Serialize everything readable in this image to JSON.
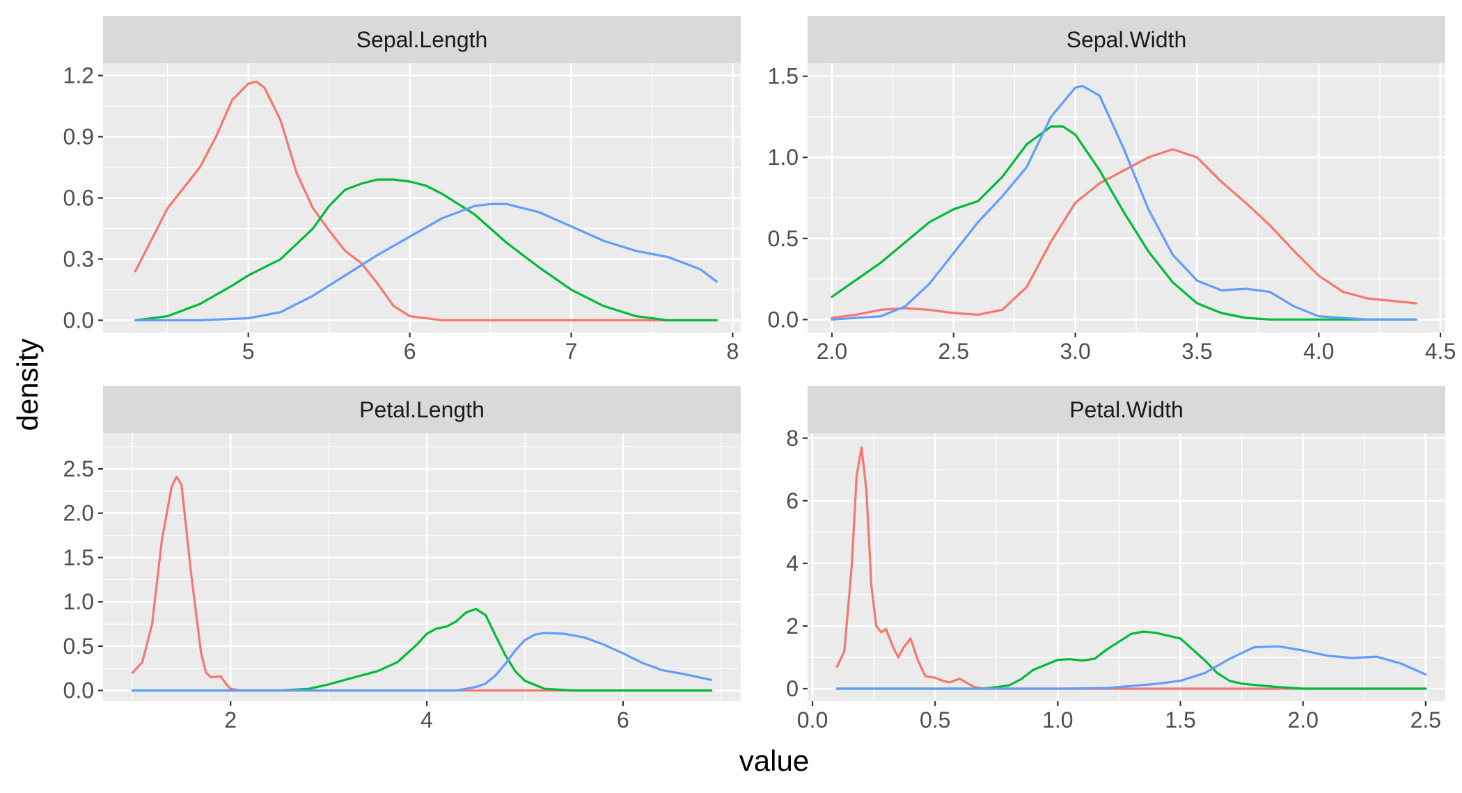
{
  "chart_data": {
    "type": "line",
    "subtype": "facet-density",
    "xlabel": "value",
    "ylabel": "density",
    "colors": {
      "series_1": "#F8766D",
      "series_2": "#00BA38",
      "series_3": "#619CFF",
      "panel_background": "#EBEBEB",
      "strip_background": "#D9D9D9",
      "grid": "#FFFFFF"
    },
    "grid": true,
    "panels": [
      {
        "title": "Sepal.Length",
        "xlim": [
          4.1,
          8.05
        ],
        "ylim": [
          -0.06,
          1.26
        ],
        "xticks": [
          5,
          6,
          7,
          8
        ],
        "xtick_labels": [
          "5",
          "6",
          "7",
          "8"
        ],
        "yticks": [
          0,
          0.3,
          0.6,
          0.9,
          1.2
        ],
        "ytick_labels": [
          "0.0",
          "0.3",
          "0.6",
          "0.9",
          "1.2"
        ],
        "series": [
          {
            "color": "#F8766D",
            "x": [
              4.3,
              4.5,
              4.7,
              4.8,
              4.9,
              5.0,
              5.05,
              5.1,
              5.2,
              5.3,
              5.4,
              5.5,
              5.6,
              5.7,
              5.8,
              5.9,
              6.0,
              6.2,
              6.5,
              7.0,
              7.5,
              7.9
            ],
            "y": [
              0.24,
              0.55,
              0.75,
              0.9,
              1.08,
              1.16,
              1.17,
              1.14,
              0.98,
              0.72,
              0.55,
              0.44,
              0.34,
              0.28,
              0.18,
              0.07,
              0.02,
              0.0,
              0.0,
              0.0,
              0.0,
              0.0
            ]
          },
          {
            "color": "#00BA38",
            "x": [
              4.3,
              4.5,
              4.7,
              4.9,
              5.0,
              5.2,
              5.4,
              5.5,
              5.6,
              5.7,
              5.8,
              5.9,
              6.0,
              6.1,
              6.2,
              6.4,
              6.6,
              6.8,
              7.0,
              7.2,
              7.4,
              7.6,
              7.9
            ],
            "y": [
              0.0,
              0.02,
              0.08,
              0.17,
              0.22,
              0.3,
              0.45,
              0.56,
              0.64,
              0.67,
              0.69,
              0.69,
              0.68,
              0.66,
              0.62,
              0.52,
              0.38,
              0.26,
              0.15,
              0.07,
              0.02,
              0.0,
              0.0
            ]
          },
          {
            "color": "#619CFF",
            "x": [
              4.3,
              4.7,
              5.0,
              5.2,
              5.4,
              5.6,
              5.8,
              6.0,
              6.2,
              6.4,
              6.5,
              6.6,
              6.8,
              7.0,
              7.2,
              7.4,
              7.6,
              7.8,
              7.9
            ],
            "y": [
              0.0,
              0.0,
              0.01,
              0.04,
              0.12,
              0.22,
              0.32,
              0.41,
              0.5,
              0.56,
              0.57,
              0.57,
              0.53,
              0.46,
              0.39,
              0.34,
              0.31,
              0.25,
              0.19
            ]
          }
        ]
      },
      {
        "title": "Sepal.Width",
        "xlim": [
          1.9,
          4.52
        ],
        "ylim": [
          -0.08,
          1.58
        ],
        "xticks": [
          2.0,
          2.5,
          3.0,
          3.5,
          4.0,
          4.5
        ],
        "xtick_labels": [
          "2.0",
          "2.5",
          "3.0",
          "3.5",
          "4.0",
          "4.5"
        ],
        "yticks": [
          0,
          0.5,
          1.0,
          1.5
        ],
        "ytick_labels": [
          "0.0",
          "0.5",
          "1.0",
          "1.5"
        ],
        "series": [
          {
            "color": "#F8766D",
            "x": [
              2.0,
              2.1,
              2.2,
              2.3,
              2.4,
              2.5,
              2.6,
              2.7,
              2.8,
              2.9,
              3.0,
              3.1,
              3.2,
              3.3,
              3.4,
              3.5,
              3.6,
              3.7,
              3.8,
              3.9,
              4.0,
              4.1,
              4.2,
              4.4
            ],
            "y": [
              0.01,
              0.03,
              0.06,
              0.07,
              0.06,
              0.04,
              0.03,
              0.06,
              0.2,
              0.48,
              0.72,
              0.84,
              0.92,
              1.0,
              1.05,
              1.0,
              0.85,
              0.72,
              0.58,
              0.42,
              0.27,
              0.17,
              0.13,
              0.1
            ]
          },
          {
            "color": "#00BA38",
            "x": [
              2.0,
              2.2,
              2.4,
              2.5,
              2.6,
              2.7,
              2.8,
              2.9,
              2.95,
              3.0,
              3.1,
              3.2,
              3.3,
              3.4,
              3.5,
              3.6,
              3.7,
              3.8,
              4.0,
              4.4
            ],
            "y": [
              0.14,
              0.35,
              0.6,
              0.68,
              0.73,
              0.88,
              1.08,
              1.19,
              1.19,
              1.14,
              0.92,
              0.66,
              0.42,
              0.23,
              0.1,
              0.04,
              0.01,
              0.0,
              0.0,
              0.0
            ]
          },
          {
            "color": "#619CFF",
            "x": [
              2.0,
              2.2,
              2.3,
              2.4,
              2.5,
              2.6,
              2.7,
              2.8,
              2.9,
              3.0,
              3.03,
              3.1,
              3.2,
              3.3,
              3.4,
              3.5,
              3.6,
              3.7,
              3.8,
              3.9,
              4.0,
              4.2,
              4.4
            ],
            "y": [
              0.0,
              0.02,
              0.08,
              0.22,
              0.41,
              0.6,
              0.76,
              0.94,
              1.25,
              1.43,
              1.44,
              1.38,
              1.05,
              0.68,
              0.4,
              0.24,
              0.18,
              0.19,
              0.17,
              0.08,
              0.02,
              0.0,
              0.0
            ]
          }
        ]
      },
      {
        "title": "Petal.Length",
        "xlim": [
          0.7,
          7.2
        ],
        "ylim": [
          -0.12,
          2.9
        ],
        "xticks": [
          2,
          4,
          6
        ],
        "xtick_labels": [
          "2",
          "4",
          "6"
        ],
        "yticks": [
          0,
          0.5,
          1.0,
          1.5,
          2.0,
          2.5
        ],
        "ytick_labels": [
          "0.0",
          "0.5",
          "1.0",
          "1.5",
          "2.0",
          "2.5"
        ],
        "series": [
          {
            "color": "#F8766D",
            "x": [
              1.0,
              1.1,
              1.2,
              1.3,
              1.4,
              1.45,
              1.5,
              1.6,
              1.7,
              1.75,
              1.8,
              1.9,
              1.95,
              2.0,
              2.1,
              6.9
            ],
            "y": [
              0.2,
              0.32,
              0.75,
              1.7,
              2.3,
              2.41,
              2.32,
              1.3,
              0.42,
              0.2,
              0.15,
              0.16,
              0.08,
              0.02,
              0.0,
              0.0
            ]
          },
          {
            "color": "#00BA38",
            "x": [
              1.0,
              2.5,
              2.8,
              3.0,
              3.2,
              3.5,
              3.7,
              3.9,
              4.0,
              4.1,
              4.2,
              4.3,
              4.4,
              4.5,
              4.6,
              4.7,
              4.8,
              4.9,
              5.0,
              5.2,
              5.5,
              6.9
            ],
            "y": [
              0.0,
              0.0,
              0.02,
              0.07,
              0.13,
              0.22,
              0.32,
              0.52,
              0.64,
              0.7,
              0.72,
              0.78,
              0.88,
              0.92,
              0.85,
              0.62,
              0.4,
              0.22,
              0.11,
              0.02,
              0.0,
              0.0
            ]
          },
          {
            "color": "#619CFF",
            "x": [
              1.0,
              4.0,
              4.3,
              4.5,
              4.6,
              4.7,
              4.8,
              4.9,
              5.0,
              5.1,
              5.2,
              5.4,
              5.6,
              5.8,
              6.0,
              6.2,
              6.4,
              6.6,
              6.9
            ],
            "y": [
              0.0,
              0.0,
              0.0,
              0.04,
              0.08,
              0.17,
              0.3,
              0.45,
              0.57,
              0.63,
              0.65,
              0.64,
              0.6,
              0.52,
              0.42,
              0.31,
              0.23,
              0.19,
              0.12
            ]
          }
        ]
      },
      {
        "title": "Petal.Width",
        "xlim": [
          -0.02,
          2.58
        ],
        "ylim": [
          -0.4,
          8.15
        ],
        "xticks": [
          0.0,
          0.5,
          1.0,
          1.5,
          2.0,
          2.5
        ],
        "xtick_labels": [
          "0.0",
          "0.5",
          "1.0",
          "1.5",
          "2.0",
          "2.5"
        ],
        "yticks": [
          0,
          2,
          4,
          6,
          8
        ],
        "ytick_labels": [
          "0",
          "2",
          "4",
          "6",
          "8"
        ],
        "series": [
          {
            "color": "#F8766D",
            "x": [
              0.1,
              0.13,
              0.16,
              0.18,
              0.2,
              0.22,
              0.24,
              0.26,
              0.28,
              0.3,
              0.33,
              0.35,
              0.37,
              0.4,
              0.43,
              0.46,
              0.5,
              0.53,
              0.56,
              0.6,
              0.63,
              0.66,
              0.7,
              2.5
            ],
            "y": [
              0.7,
              1.2,
              3.9,
              6.8,
              7.7,
              6.3,
              3.3,
              2.0,
              1.8,
              1.9,
              1.3,
              1.0,
              1.3,
              1.6,
              0.9,
              0.4,
              0.35,
              0.25,
              0.2,
              0.32,
              0.18,
              0.05,
              0.0,
              0.0
            ]
          },
          {
            "color": "#00BA38",
            "x": [
              0.1,
              0.7,
              0.8,
              0.85,
              0.9,
              1.0,
              1.05,
              1.1,
              1.15,
              1.2,
              1.3,
              1.35,
              1.4,
              1.5,
              1.55,
              1.6,
              1.65,
              1.7,
              1.75,
              1.8,
              1.9,
              2.0,
              2.5
            ],
            "y": [
              0.0,
              0.0,
              0.1,
              0.3,
              0.6,
              0.92,
              0.94,
              0.9,
              0.95,
              1.25,
              1.75,
              1.82,
              1.78,
              1.6,
              1.25,
              0.9,
              0.5,
              0.25,
              0.16,
              0.12,
              0.05,
              0.0,
              0.0
            ]
          },
          {
            "color": "#619CFF",
            "x": [
              0.1,
              1.0,
              1.2,
              1.4,
              1.5,
              1.6,
              1.7,
              1.8,
              1.9,
              2.0,
              2.1,
              2.2,
              2.3,
              2.4,
              2.5
            ],
            "y": [
              0.0,
              0.0,
              0.02,
              0.15,
              0.25,
              0.5,
              0.95,
              1.32,
              1.35,
              1.22,
              1.05,
              0.98,
              1.02,
              0.8,
              0.45
            ]
          }
        ]
      }
    ]
  }
}
